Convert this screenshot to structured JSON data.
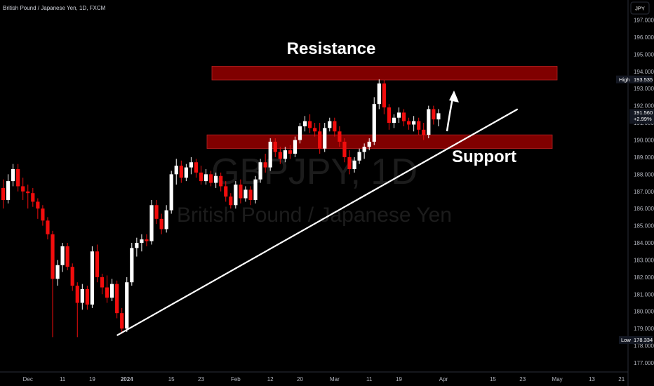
{
  "header": {
    "title": "British Pound / Japanese Yen, 1D, FXCM",
    "currency": "JPY"
  },
  "watermark": {
    "symbol": "GBPJPY, 1D",
    "name": "British Pound / Japanese Yen"
  },
  "annotations": {
    "resistance_label": "Resistance",
    "support_label": "Support"
  },
  "price_labels": {
    "high_tag": "High",
    "high_value": "193.535",
    "last_value": "191.560",
    "last_change": "+2.99%",
    "low_tag": "Low",
    "low_value": "178.334"
  },
  "colors": {
    "background": "#000000",
    "up_candle": "#ffffff",
    "down_candle": "#f20d0d",
    "zone_fill": "#800000",
    "badge": "#131722",
    "axis_text": "#b2b5be"
  },
  "chart_data": {
    "type": "candlestick",
    "ylim": [
      176.6,
      198.0
    ],
    "y_ticks": [
      177,
      178,
      179,
      180,
      181,
      182,
      183,
      184,
      185,
      186,
      187,
      188,
      189,
      190,
      191,
      192,
      193,
      194,
      195,
      196,
      197
    ],
    "x_ticks": [
      {
        "label": "Dec",
        "i": 5
      },
      {
        "label": "11",
        "i": 12
      },
      {
        "label": "19",
        "i": 18
      },
      {
        "label": "2024",
        "i": 25
      },
      {
        "label": "15",
        "i": 34
      },
      {
        "label": "23",
        "i": 40
      },
      {
        "label": "Feb",
        "i": 47
      },
      {
        "label": "12",
        "i": 54
      },
      {
        "label": "20",
        "i": 60
      },
      {
        "label": "Mar",
        "i": 67
      },
      {
        "label": "11",
        "i": 74
      },
      {
        "label": "19",
        "i": 80
      },
      {
        "label": "Apr",
        "i": 89
      },
      {
        "label": "15",
        "i": 99
      },
      {
        "label": "23",
        "i": 105
      },
      {
        "label": "May",
        "i": 112
      },
      {
        "label": "13",
        "i": 119
      },
      {
        "label": "21",
        "i": 125
      }
    ],
    "resistance_zone": [
      193.5,
      194.3
    ],
    "support_zone": [
      189.5,
      190.3
    ],
    "trendline": [
      {
        "i": 23,
        "price": 178.6
      },
      {
        "i": 104,
        "price": 191.8
      }
    ],
    "candles": [
      {
        "o": 187.2,
        "h": 187.7,
        "l": 186.0,
        "c": 186.5
      },
      {
        "o": 186.5,
        "h": 188.0,
        "l": 186.3,
        "c": 187.6
      },
      {
        "o": 187.6,
        "h": 188.6,
        "l": 187.3,
        "c": 188.3
      },
      {
        "o": 188.3,
        "h": 188.6,
        "l": 187.0,
        "c": 187.3
      },
      {
        "o": 187.3,
        "h": 187.8,
        "l": 186.5,
        "c": 187.0
      },
      {
        "o": 187.0,
        "h": 187.4,
        "l": 186.0,
        "c": 186.9
      },
      {
        "o": 186.9,
        "h": 187.2,
        "l": 186.1,
        "c": 186.4
      },
      {
        "o": 186.4,
        "h": 186.6,
        "l": 185.4,
        "c": 186.0
      },
      {
        "o": 186.0,
        "h": 186.2,
        "l": 185.0,
        "c": 185.3
      },
      {
        "o": 185.3,
        "h": 185.5,
        "l": 184.2,
        "c": 184.5
      },
      {
        "o": 184.5,
        "h": 184.7,
        "l": 178.5,
        "c": 181.9
      },
      {
        "o": 181.9,
        "h": 183.0,
        "l": 181.5,
        "c": 182.7
      },
      {
        "o": 182.7,
        "h": 184.0,
        "l": 182.3,
        "c": 183.8
      },
      {
        "o": 183.8,
        "h": 184.0,
        "l": 182.4,
        "c": 182.6
      },
      {
        "o": 182.6,
        "h": 182.8,
        "l": 181.2,
        "c": 181.5
      },
      {
        "o": 181.5,
        "h": 181.7,
        "l": 178.5,
        "c": 180.5
      },
      {
        "o": 180.5,
        "h": 181.6,
        "l": 180.1,
        "c": 181.3
      },
      {
        "o": 181.3,
        "h": 181.5,
        "l": 180.1,
        "c": 180.4
      },
      {
        "o": 180.4,
        "h": 183.8,
        "l": 180.2,
        "c": 183.5
      },
      {
        "o": 183.5,
        "h": 183.9,
        "l": 181.7,
        "c": 182.0
      },
      {
        "o": 182.0,
        "h": 182.2,
        "l": 181.0,
        "c": 181.4
      },
      {
        "o": 181.4,
        "h": 182.1,
        "l": 180.5,
        "c": 180.8
      },
      {
        "o": 180.8,
        "h": 181.9,
        "l": 180.6,
        "c": 181.6
      },
      {
        "o": 181.6,
        "h": 181.8,
        "l": 179.6,
        "c": 179.9
      },
      {
        "o": 179.9,
        "h": 180.2,
        "l": 178.7,
        "c": 179.0
      },
      {
        "o": 179.0,
        "h": 182.0,
        "l": 178.8,
        "c": 181.7
      },
      {
        "o": 181.7,
        "h": 184.0,
        "l": 181.5,
        "c": 183.7
      },
      {
        "o": 183.7,
        "h": 184.3,
        "l": 183.2,
        "c": 184.0
      },
      {
        "o": 184.0,
        "h": 184.5,
        "l": 183.5,
        "c": 184.2
      },
      {
        "o": 184.2,
        "h": 184.5,
        "l": 183.8,
        "c": 184.1
      },
      {
        "o": 184.1,
        "h": 186.5,
        "l": 183.9,
        "c": 186.2
      },
      {
        "o": 186.2,
        "h": 186.5,
        "l": 185.1,
        "c": 185.4
      },
      {
        "o": 185.4,
        "h": 185.7,
        "l": 184.5,
        "c": 184.8
      },
      {
        "o": 184.8,
        "h": 186.2,
        "l": 184.6,
        "c": 185.9
      },
      {
        "o": 185.9,
        "h": 188.2,
        "l": 185.7,
        "c": 188.0
      },
      {
        "o": 188.0,
        "h": 188.9,
        "l": 187.4,
        "c": 188.5
      },
      {
        "o": 188.5,
        "h": 188.8,
        "l": 187.5,
        "c": 187.8
      },
      {
        "o": 187.8,
        "h": 188.6,
        "l": 187.6,
        "c": 188.4
      },
      {
        "o": 188.4,
        "h": 189.0,
        "l": 188.0,
        "c": 188.7
      },
      {
        "o": 188.7,
        "h": 188.9,
        "l": 187.8,
        "c": 188.1
      },
      {
        "o": 188.1,
        "h": 188.5,
        "l": 187.4,
        "c": 187.6
      },
      {
        "o": 187.6,
        "h": 188.3,
        "l": 187.4,
        "c": 188.0
      },
      {
        "o": 188.0,
        "h": 188.2,
        "l": 187.3,
        "c": 187.5
      },
      {
        "o": 187.5,
        "h": 188.1,
        "l": 187.2,
        "c": 187.9
      },
      {
        "o": 187.9,
        "h": 188.1,
        "l": 187.0,
        "c": 187.3
      },
      {
        "o": 187.3,
        "h": 187.6,
        "l": 186.4,
        "c": 186.7
      },
      {
        "o": 186.7,
        "h": 186.9,
        "l": 186.0,
        "c": 186.2
      },
      {
        "o": 186.2,
        "h": 187.6,
        "l": 186.0,
        "c": 187.4
      },
      {
        "o": 187.4,
        "h": 187.7,
        "l": 186.3,
        "c": 186.6
      },
      {
        "o": 186.6,
        "h": 187.3,
        "l": 186.4,
        "c": 187.1
      },
      {
        "o": 187.1,
        "h": 187.3,
        "l": 186.2,
        "c": 186.5
      },
      {
        "o": 186.5,
        "h": 187.9,
        "l": 186.3,
        "c": 187.7
      },
      {
        "o": 187.7,
        "h": 188.9,
        "l": 187.5,
        "c": 188.7
      },
      {
        "o": 188.7,
        "h": 189.2,
        "l": 188.1,
        "c": 188.4
      },
      {
        "o": 188.4,
        "h": 190.1,
        "l": 188.2,
        "c": 189.9
      },
      {
        "o": 189.9,
        "h": 190.1,
        "l": 189.0,
        "c": 189.3
      },
      {
        "o": 189.3,
        "h": 189.6,
        "l": 188.6,
        "c": 188.9
      },
      {
        "o": 188.9,
        "h": 189.6,
        "l": 188.7,
        "c": 189.4
      },
      {
        "o": 189.4,
        "h": 189.7,
        "l": 188.9,
        "c": 189.2
      },
      {
        "o": 189.2,
        "h": 190.2,
        "l": 189.0,
        "c": 190.0
      },
      {
        "o": 190.0,
        "h": 191.0,
        "l": 189.8,
        "c": 190.8
      },
      {
        "o": 190.8,
        "h": 191.4,
        "l": 190.5,
        "c": 191.1
      },
      {
        "o": 191.1,
        "h": 191.5,
        "l": 190.4,
        "c": 190.7
      },
      {
        "o": 190.7,
        "h": 191.0,
        "l": 190.2,
        "c": 190.5
      },
      {
        "o": 190.5,
        "h": 191.0,
        "l": 189.2,
        "c": 189.5
      },
      {
        "o": 189.5,
        "h": 191.0,
        "l": 189.3,
        "c": 190.7
      },
      {
        "o": 190.7,
        "h": 191.3,
        "l": 190.5,
        "c": 191.1
      },
      {
        "o": 191.1,
        "h": 191.3,
        "l": 190.2,
        "c": 190.5
      },
      {
        "o": 190.5,
        "h": 190.8,
        "l": 189.6,
        "c": 189.9
      },
      {
        "o": 189.9,
        "h": 190.1,
        "l": 188.7,
        "c": 189.0
      },
      {
        "o": 189.0,
        "h": 189.4,
        "l": 188.0,
        "c": 188.3
      },
      {
        "o": 188.3,
        "h": 189.0,
        "l": 188.1,
        "c": 188.8
      },
      {
        "o": 188.8,
        "h": 189.5,
        "l": 188.6,
        "c": 189.3
      },
      {
        "o": 189.3,
        "h": 189.8,
        "l": 188.9,
        "c": 189.6
      },
      {
        "o": 189.6,
        "h": 190.1,
        "l": 189.4,
        "c": 189.9
      },
      {
        "o": 189.9,
        "h": 192.5,
        "l": 189.7,
        "c": 192.1
      },
      {
        "o": 192.1,
        "h": 193.535,
        "l": 191.8,
        "c": 193.3
      },
      {
        "o": 193.3,
        "h": 193.5,
        "l": 191.5,
        "c": 191.9
      },
      {
        "o": 191.9,
        "h": 192.1,
        "l": 190.6,
        "c": 191.0
      },
      {
        "o": 191.0,
        "h": 191.5,
        "l": 190.7,
        "c": 191.3
      },
      {
        "o": 191.3,
        "h": 191.9,
        "l": 191.0,
        "c": 191.6
      },
      {
        "o": 191.6,
        "h": 191.8,
        "l": 190.8,
        "c": 191.1
      },
      {
        "o": 191.1,
        "h": 191.3,
        "l": 190.6,
        "c": 190.9
      },
      {
        "o": 190.9,
        "h": 191.4,
        "l": 190.5,
        "c": 191.1
      },
      {
        "o": 191.1,
        "h": 191.3,
        "l": 190.3,
        "c": 190.6
      },
      {
        "o": 190.6,
        "h": 191.0,
        "l": 190.0,
        "c": 190.3
      },
      {
        "o": 190.3,
        "h": 192.0,
        "l": 190.1,
        "c": 191.8
      },
      {
        "o": 191.8,
        "h": 192.0,
        "l": 190.9,
        "c": 191.2
      },
      {
        "o": 191.2,
        "h": 191.8,
        "l": 190.8,
        "c": 191.56
      }
    ]
  }
}
